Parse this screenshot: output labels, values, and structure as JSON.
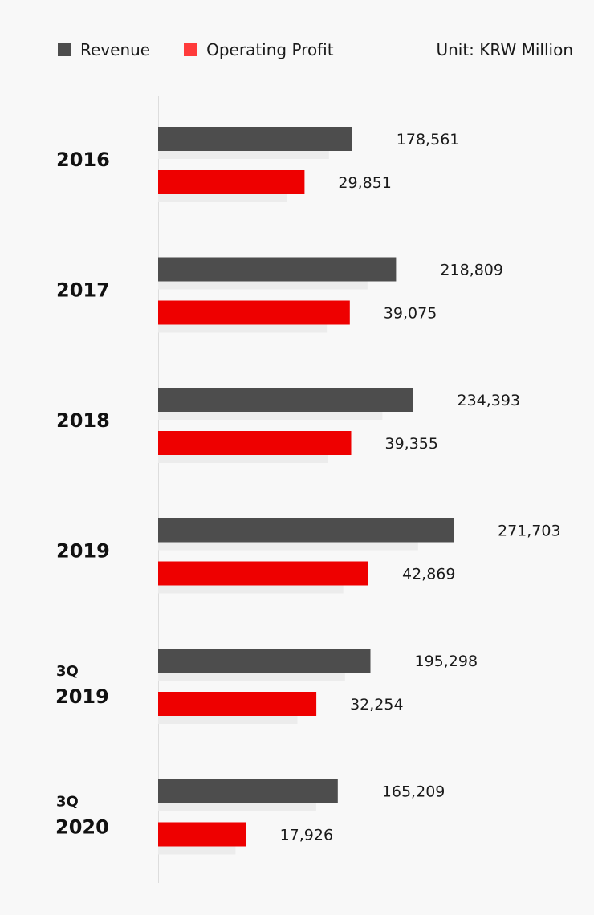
{
  "legend": {
    "revenue_label": "Revenue",
    "profit_label": "Operating Profit",
    "unit": "Unit: KRW Million"
  },
  "colors": {
    "revenue": "#4d4d4d",
    "profit": "#ee0000",
    "shadow": "#ececec",
    "axis": "#dddddd"
  },
  "chart_data": {
    "type": "bar",
    "orientation": "horizontal",
    "categories": [
      {
        "prefix": "",
        "label": "2016"
      },
      {
        "prefix": "",
        "label": "2017"
      },
      {
        "prefix": "",
        "label": "2018"
      },
      {
        "prefix": "",
        "label": "2019"
      },
      {
        "prefix": "3Q",
        "label": "2019"
      },
      {
        "prefix": "3Q",
        "label": "2020"
      }
    ],
    "series": [
      {
        "name": "Revenue",
        "values": [
          178561,
          218809,
          234393,
          271703,
          195298,
          165209
        ],
        "labels": [
          "178,561",
          "218,809",
          "234,393",
          "271,703",
          "195,298",
          "165,209"
        ]
      },
      {
        "name": "Operating Profit",
        "values": [
          29851,
          39075,
          39355,
          42869,
          32254,
          17926
        ],
        "labels": [
          "29,851",
          "39,075",
          "39,355",
          "42,869",
          "32,254",
          "17,926"
        ]
      }
    ],
    "grid": false,
    "legend_position": "top-left"
  }
}
